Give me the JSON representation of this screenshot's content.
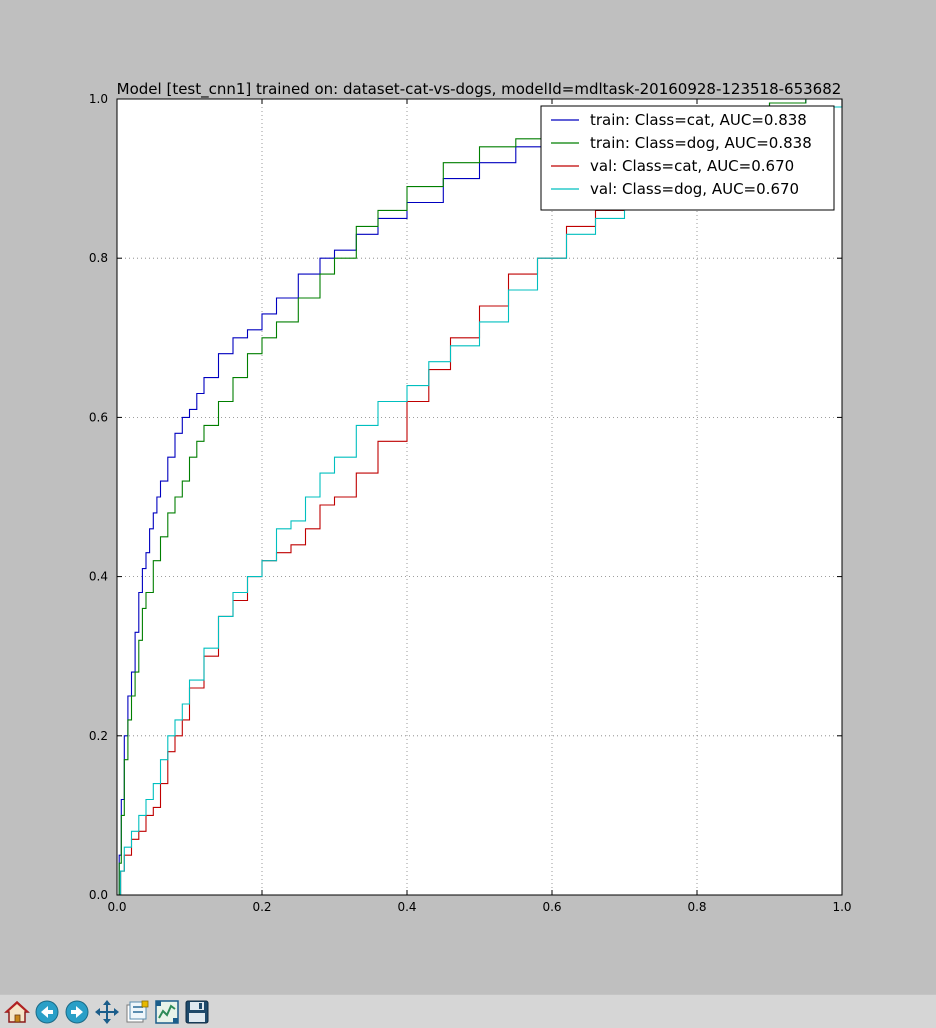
{
  "window": {
    "toolbar": [
      {
        "name": "home-button",
        "icon": "home-icon",
        "tooltip": "Reset original view"
      },
      {
        "name": "back-button",
        "icon": "back-arrow-icon",
        "tooltip": "Back to previous view"
      },
      {
        "name": "forward-button",
        "icon": "forward-arrow-icon",
        "tooltip": "Forward to next view"
      },
      {
        "name": "pan-button",
        "icon": "move-cross-icon",
        "tooltip": "Pan axes"
      },
      {
        "name": "subplots-button",
        "icon": "subplots-config-icon",
        "tooltip": "Configure subplots"
      },
      {
        "name": "edit-axes-button",
        "icon": "edit-curves-icon",
        "tooltip": "Edit axis, curve and image parameters"
      },
      {
        "name": "save-button",
        "icon": "floppy-disk-icon",
        "tooltip": "Save the figure"
      }
    ]
  },
  "chart_data": {
    "type": "line",
    "title": "Model [test_cnn1] trained on: dataset-cat-vs-dogs, modelId=mdltask-20160928-123518-653682",
    "xlabel": "",
    "ylabel": "",
    "xlim": [
      0.0,
      1.0
    ],
    "ylim": [
      0.0,
      1.0
    ],
    "xticks": [
      "0.0",
      "0.2",
      "0.4",
      "0.6",
      "0.8",
      "1.0"
    ],
    "yticks": [
      "0.0",
      "0.2",
      "0.4",
      "0.6",
      "0.8",
      "1.0"
    ],
    "grid": true,
    "legend_position": "top-right",
    "colors": {
      "background": "#bfbfbf",
      "axes": "#ffffff",
      "grid": "#7f7f7f"
    },
    "series": [
      {
        "name": "train: Class=cat, AUC=0.838",
        "color": "#0000bf",
        "x": [
          0,
          0.003,
          0.006,
          0.01,
          0.015,
          0.02,
          0.025,
          0.03,
          0.035,
          0.04,
          0.045,
          0.05,
          0.055,
          0.06,
          0.07,
          0.08,
          0.09,
          0.1,
          0.11,
          0.12,
          0.14,
          0.16,
          0.18,
          0.2,
          0.22,
          0.25,
          0.28,
          0.3,
          0.33,
          0.36,
          0.4,
          0.45,
          0.5,
          0.55,
          0.6,
          0.65,
          0.7,
          0.75,
          0.8,
          0.85,
          0.9,
          0.95,
          1.0
        ],
        "y": [
          0,
          0.05,
          0.12,
          0.2,
          0.25,
          0.28,
          0.33,
          0.38,
          0.41,
          0.43,
          0.46,
          0.48,
          0.5,
          0.52,
          0.55,
          0.58,
          0.6,
          0.61,
          0.63,
          0.65,
          0.68,
          0.7,
          0.71,
          0.73,
          0.75,
          0.78,
          0.8,
          0.81,
          0.83,
          0.85,
          0.87,
          0.9,
          0.92,
          0.94,
          0.95,
          0.96,
          0.97,
          0.98,
          0.985,
          0.99,
          0.995,
          1.0,
          1.0
        ]
      },
      {
        "name": "train: Class=dog, AUC=0.838",
        "color": "#007f00",
        "x": [
          0,
          0.003,
          0.006,
          0.01,
          0.015,
          0.02,
          0.025,
          0.03,
          0.035,
          0.04,
          0.05,
          0.06,
          0.07,
          0.08,
          0.09,
          0.1,
          0.11,
          0.12,
          0.14,
          0.16,
          0.18,
          0.2,
          0.22,
          0.25,
          0.28,
          0.3,
          0.33,
          0.36,
          0.4,
          0.45,
          0.5,
          0.55,
          0.6,
          0.65,
          0.7,
          0.75,
          0.8,
          0.85,
          0.9,
          0.95,
          1.0
        ],
        "y": [
          0,
          0.04,
          0.1,
          0.17,
          0.22,
          0.25,
          0.28,
          0.32,
          0.36,
          0.38,
          0.42,
          0.45,
          0.48,
          0.5,
          0.52,
          0.55,
          0.57,
          0.59,
          0.62,
          0.65,
          0.68,
          0.7,
          0.72,
          0.75,
          0.78,
          0.8,
          0.84,
          0.86,
          0.89,
          0.92,
          0.94,
          0.95,
          0.955,
          0.96,
          0.97,
          0.98,
          0.985,
          0.99,
          0.995,
          1.0,
          1.0
        ]
      },
      {
        "name": "val: Class=cat, AUC=0.670",
        "color": "#bf0000",
        "x": [
          0,
          0.005,
          0.01,
          0.02,
          0.03,
          0.04,
          0.05,
          0.06,
          0.07,
          0.08,
          0.09,
          0.1,
          0.12,
          0.14,
          0.16,
          0.18,
          0.2,
          0.22,
          0.24,
          0.26,
          0.28,
          0.3,
          0.33,
          0.36,
          0.4,
          0.43,
          0.46,
          0.5,
          0.54,
          0.58,
          0.62,
          0.66,
          0.7,
          0.75,
          0.8,
          0.85,
          0.9,
          0.95,
          1.0
        ],
        "y": [
          0,
          0.03,
          0.05,
          0.07,
          0.08,
          0.1,
          0.11,
          0.14,
          0.18,
          0.2,
          0.22,
          0.26,
          0.3,
          0.35,
          0.37,
          0.4,
          0.42,
          0.43,
          0.44,
          0.46,
          0.49,
          0.5,
          0.53,
          0.57,
          0.62,
          0.66,
          0.7,
          0.74,
          0.78,
          0.8,
          0.84,
          0.86,
          0.88,
          0.9,
          0.93,
          0.95,
          0.97,
          0.99,
          1.0
        ]
      },
      {
        "name": "val: Class=dog, AUC=0.670",
        "color": "#00bfbf",
        "x": [
          0,
          0.005,
          0.01,
          0.02,
          0.03,
          0.04,
          0.05,
          0.06,
          0.07,
          0.08,
          0.09,
          0.1,
          0.12,
          0.14,
          0.16,
          0.18,
          0.2,
          0.22,
          0.24,
          0.26,
          0.28,
          0.3,
          0.33,
          0.36,
          0.4,
          0.43,
          0.46,
          0.5,
          0.54,
          0.58,
          0.62,
          0.66,
          0.7,
          0.75,
          0.8,
          0.85,
          0.9,
          0.95,
          1.0
        ],
        "y": [
          0,
          0.03,
          0.06,
          0.08,
          0.1,
          0.12,
          0.14,
          0.17,
          0.2,
          0.22,
          0.24,
          0.27,
          0.31,
          0.35,
          0.38,
          0.4,
          0.42,
          0.46,
          0.47,
          0.5,
          0.53,
          0.55,
          0.59,
          0.62,
          0.64,
          0.67,
          0.69,
          0.72,
          0.76,
          0.8,
          0.83,
          0.85,
          0.87,
          0.9,
          0.92,
          0.94,
          0.97,
          0.99,
          1.0
        ]
      }
    ]
  }
}
